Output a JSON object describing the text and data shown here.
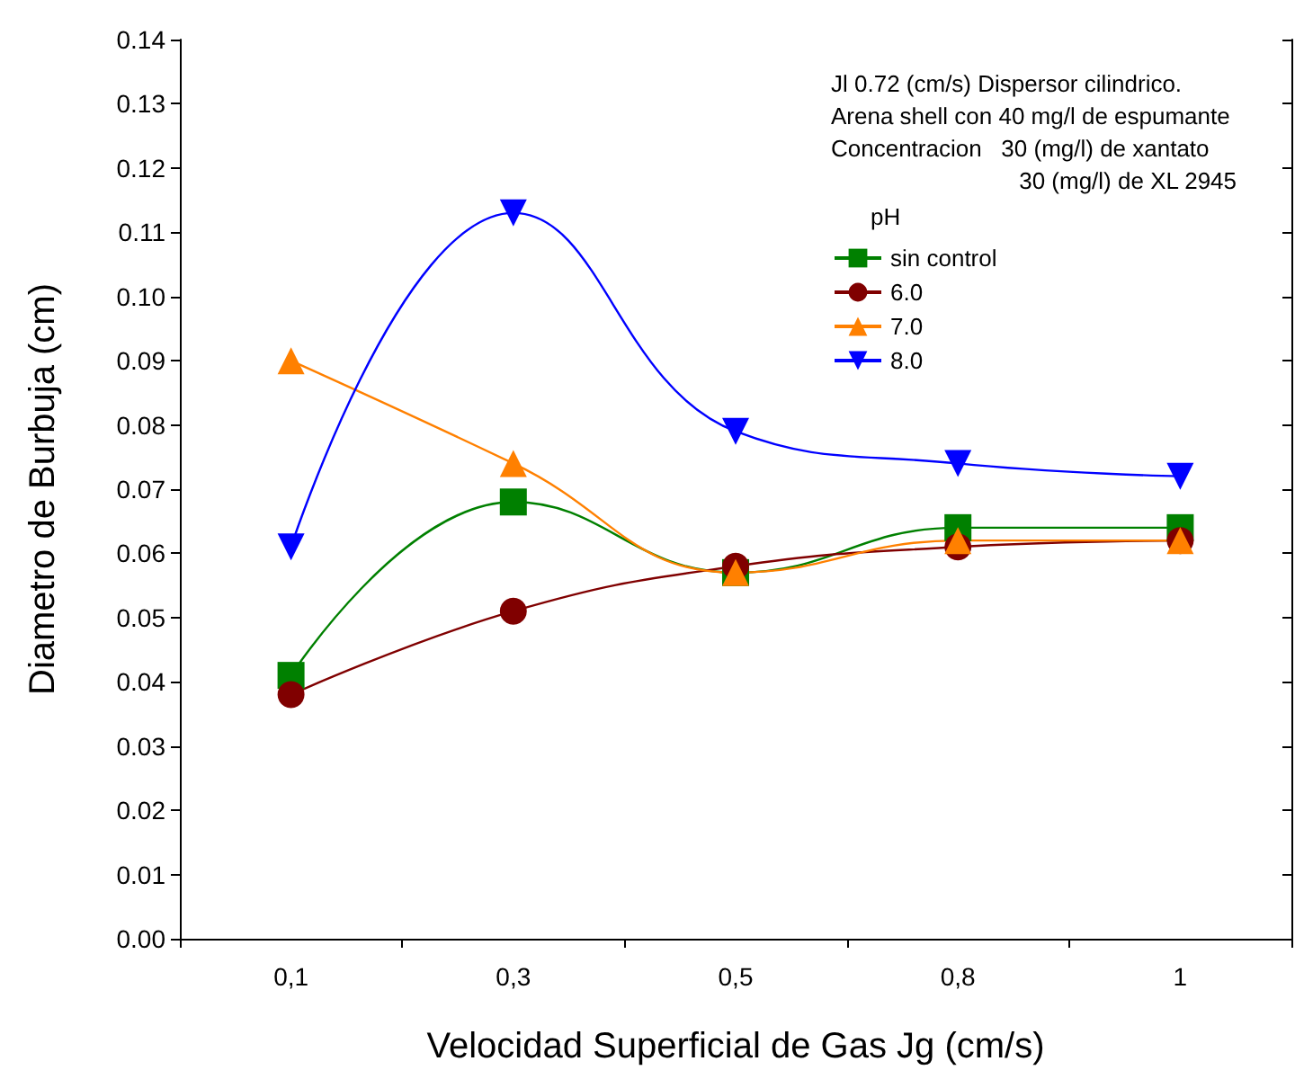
{
  "chart_data": {
    "type": "line",
    "xlabel": "Velocidad Superficial de Gas Jg (cm/s)",
    "ylabel": "Diametro de Burbuja (cm)",
    "categories": [
      "0,1",
      "0,3",
      "0,5",
      "0,8",
      "1"
    ],
    "series": [
      {
        "name": "sin control",
        "color": "#008000",
        "marker": "square",
        "values": [
          0.041,
          0.068,
          0.057,
          0.064,
          0.064
        ]
      },
      {
        "name": "6.0",
        "color": "#800000",
        "marker": "circle",
        "values": [
          0.038,
          0.051,
          0.058,
          0.061,
          0.062
        ]
      },
      {
        "name": "7.0",
        "color": "#ff8000",
        "marker": "triangle",
        "values": [
          0.09,
          0.074,
          0.057,
          0.062,
          0.062
        ]
      },
      {
        "name": "8.0",
        "color": "#0000ff",
        "marker": "triangle-down",
        "values": [
          0.061,
          0.113,
          0.079,
          0.074,
          0.072
        ]
      }
    ],
    "ylim": [
      0,
      0.14
    ],
    "yticks": [
      {
        "value": 0,
        "label": "0.00"
      },
      {
        "value": 0.01,
        "label": "0.01"
      },
      {
        "value": 0.02,
        "label": "0.02"
      },
      {
        "value": 0.03,
        "label": "0.03"
      },
      {
        "value": 0.04,
        "label": "0.04"
      },
      {
        "value": 0.05,
        "label": "0.05"
      },
      {
        "value": 0.06,
        "label": "0.06"
      },
      {
        "value": 0.07,
        "label": "0.07"
      },
      {
        "value": 0.08,
        "label": "0.08"
      },
      {
        "value": 0.09,
        "label": "0.09"
      },
      {
        "value": 0.1,
        "label": "0.10"
      },
      {
        "value": 0.11,
        "label": "0.11"
      },
      {
        "value": 0.12,
        "label": "0.12"
      },
      {
        "value": 0.13,
        "label": "0.13"
      },
      {
        "value": 0.14,
        "label": "0.14"
      }
    ],
    "legend": "top right",
    "legend_title": "pH",
    "annotations": [
      "Jl 0.72 (cm/s) Dispersor cilindrico.",
      "Arena shell con 40 mg/l de espumante",
      "Concentracion   30 (mg/l) de xantato",
      "30 (mg/l) de XL 2945"
    ],
    "line_style": "solid",
    "grid": false
  }
}
